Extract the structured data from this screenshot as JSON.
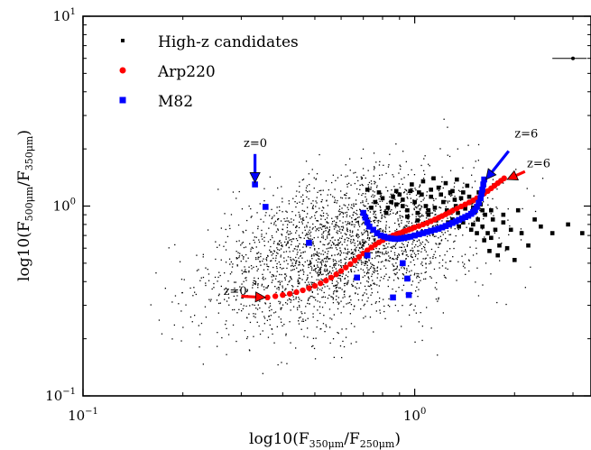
{
  "chart_data": {
    "type": "scatter",
    "xscale": "log",
    "yscale": "log",
    "xlim": [
      0.1,
      3.4
    ],
    "ylim": [
      0.1,
      10
    ],
    "x_ticks": [
      {
        "value": 0.1,
        "base": "10",
        "exp": "−1"
      },
      {
        "value": 1,
        "base": "10",
        "exp": "0"
      }
    ],
    "y_ticks": [
      {
        "value": 0.1,
        "base": "10",
        "exp": "−1"
      },
      {
        "value": 1,
        "base": "10",
        "exp": "0"
      },
      {
        "value": 10,
        "base": "10",
        "exp": "1"
      }
    ],
    "xlabel": {
      "pre": "log10(F",
      "sub1": "350μm",
      "mid": "/F",
      "sub2": "250μm",
      "post": ")"
    },
    "ylabel": {
      "pre": "log10(F",
      "sub1": "500μm",
      "mid": "/F",
      "sub2": "350μm",
      "post": ")"
    },
    "legend": {
      "position": "top-left",
      "entries": [
        {
          "label": "High-z candidates",
          "marker": "square-small",
          "color": "#000000"
        },
        {
          "label": "Arp220",
          "marker": "circle",
          "color": "#ff0000"
        },
        {
          "label": "M82",
          "marker": "square",
          "color": "#0000ff"
        }
      ]
    },
    "series": [
      {
        "name": "High-z candidates",
        "color": "#000000",
        "points": [
          [
            0.72,
            1.22
          ],
          [
            0.76,
            1.05
          ],
          [
            0.8,
            1.1
          ],
          [
            0.83,
            0.98
          ],
          [
            0.86,
            1.12
          ],
          [
            0.88,
            1.02
          ],
          [
            0.9,
            1.15
          ],
          [
            0.92,
            1.08
          ],
          [
            0.95,
            0.95
          ],
          [
            0.97,
            1.2
          ],
          [
            1.0,
            1.05
          ],
          [
            1.02,
            0.92
          ],
          [
            1.05,
            1.15
          ],
          [
            1.08,
            1.0
          ],
          [
            1.1,
            0.9
          ],
          [
            1.12,
            1.12
          ],
          [
            1.15,
            0.98
          ],
          [
            1.18,
            1.25
          ],
          [
            1.2,
            0.88
          ],
          [
            1.22,
            1.05
          ],
          [
            1.25,
            0.95
          ],
          [
            1.28,
            1.18
          ],
          [
            1.3,
            0.85
          ],
          [
            1.33,
            1.0
          ],
          [
            1.35,
            0.92
          ],
          [
            1.38,
            1.1
          ],
          [
            1.4,
            0.82
          ],
          [
            1.42,
            0.97
          ],
          [
            1.45,
            0.88
          ],
          [
            1.48,
            1.05
          ],
          [
            1.5,
            0.8
          ],
          [
            1.52,
            0.93
          ],
          [
            1.55,
            0.85
          ],
          [
            1.58,
            1.02
          ],
          [
            1.6,
            0.78
          ],
          [
            1.63,
            0.9
          ],
          [
            1.66,
            0.72
          ],
          [
            1.7,
            0.95
          ],
          [
            1.75,
            0.75
          ],
          [
            1.8,
            0.62
          ],
          [
            1.85,
            0.82
          ],
          [
            1.9,
            0.6
          ],
          [
            2.0,
            0.52
          ],
          [
            2.1,
            0.72
          ],
          [
            2.3,
            0.85
          ],
          [
            2.6,
            0.72
          ],
          [
            2.9,
            0.8
          ],
          [
            3.2,
            0.72
          ],
          [
            0.98,
            1.3
          ],
          [
            1.06,
            1.35
          ],
          [
            1.14,
            1.4
          ],
          [
            1.24,
            1.32
          ],
          [
            1.34,
            1.38
          ],
          [
            1.44,
            1.28
          ],
          [
            1.2,
            1.15
          ],
          [
            1.1,
            0.95
          ],
          [
            0.95,
            0.88
          ],
          [
            1.3,
            1.2
          ],
          [
            1.46,
            1.12
          ],
          [
            1.56,
            1.18
          ],
          [
            1.7,
            0.68
          ],
          [
            1.62,
            0.66
          ],
          [
            1.54,
            0.72
          ],
          [
            1.48,
            0.75
          ],
          [
            1.36,
            0.78
          ],
          [
            1.26,
            0.82
          ],
          [
            1.16,
            0.84
          ],
          [
            1.02,
            0.84
          ],
          [
            0.92,
            1.0
          ],
          [
            0.85,
            1.05
          ],
          [
            0.78,
            1.18
          ],
          [
            0.74,
            0.98
          ],
          [
            1.32,
            1.08
          ],
          [
            1.4,
            1.18
          ],
          [
            1.5,
            0.98
          ],
          [
            1.6,
            0.95
          ],
          [
            1.72,
            0.85
          ],
          [
            1.85,
            0.9
          ],
          [
            1.95,
            0.75
          ],
          [
            2.2,
            0.62
          ],
          [
            2.4,
            0.78
          ],
          [
            1.78,
            0.55
          ],
          [
            1.68,
            0.58
          ],
          [
            2.05,
            0.95
          ],
          [
            1.12,
            1.22
          ],
          [
            1.03,
            1.18
          ],
          [
            0.88,
            1.2
          ],
          [
            0.82,
            0.92
          ]
        ]
      },
      {
        "name": "Arp220",
        "color": "#ff0000",
        "points": [
          [
            0.36,
            0.33
          ],
          [
            0.38,
            0.335
          ],
          [
            0.4,
            0.34
          ],
          [
            0.42,
            0.345
          ],
          [
            0.44,
            0.352
          ],
          [
            0.46,
            0.36
          ],
          [
            0.48,
            0.37
          ],
          [
            0.5,
            0.38
          ],
          [
            0.52,
            0.392
          ],
          [
            0.54,
            0.405
          ],
          [
            0.56,
            0.42
          ],
          [
            0.58,
            0.437
          ],
          [
            0.6,
            0.455
          ],
          [
            0.62,
            0.475
          ],
          [
            0.64,
            0.495
          ],
          [
            0.66,
            0.517
          ],
          [
            0.68,
            0.54
          ],
          [
            0.7,
            0.563
          ],
          [
            0.72,
            0.585
          ],
          [
            0.74,
            0.605
          ],
          [
            0.76,
            0.625
          ],
          [
            0.78,
            0.643
          ],
          [
            0.8,
            0.66
          ],
          [
            0.82,
            0.675
          ],
          [
            0.84,
            0.688
          ],
          [
            0.86,
            0.7
          ],
          [
            0.88,
            0.71
          ],
          [
            0.9,
            0.72
          ],
          [
            0.92,
            0.73
          ],
          [
            0.94,
            0.74
          ],
          [
            0.96,
            0.75
          ],
          [
            0.98,
            0.76
          ],
          [
            1.0,
            0.772
          ],
          [
            1.03,
            0.785
          ],
          [
            1.06,
            0.8
          ],
          [
            1.09,
            0.815
          ],
          [
            1.12,
            0.832
          ],
          [
            1.15,
            0.85
          ],
          [
            1.18,
            0.868
          ],
          [
            1.21,
            0.886
          ],
          [
            1.24,
            0.905
          ],
          [
            1.27,
            0.925
          ],
          [
            1.3,
            0.945
          ],
          [
            1.34,
            0.97
          ],
          [
            1.38,
            0.995
          ],
          [
            1.42,
            1.02
          ],
          [
            1.46,
            1.045
          ],
          [
            1.5,
            1.07
          ],
          [
            1.54,
            1.1
          ],
          [
            1.58,
            1.13
          ],
          [
            1.62,
            1.165
          ],
          [
            1.66,
            1.2
          ],
          [
            1.7,
            1.24
          ],
          [
            1.74,
            1.28
          ],
          [
            1.78,
            1.32
          ],
          [
            1.82,
            1.36
          ],
          [
            1.86,
            1.4
          ]
        ]
      },
      {
        "name": "M82",
        "color": "#0000ff",
        "points": [
          [
            0.33,
            1.3
          ],
          [
            0.355,
            0.99
          ],
          [
            0.48,
            0.64
          ],
          [
            0.67,
            0.42
          ],
          [
            0.72,
            0.55
          ],
          [
            0.86,
            0.33
          ],
          [
            0.92,
            0.5
          ],
          [
            0.95,
            0.415
          ],
          [
            0.96,
            0.34
          ],
          [
            0.7,
            0.92
          ],
          [
            0.71,
            0.87
          ],
          [
            0.72,
            0.82
          ],
          [
            0.73,
            0.78
          ],
          [
            0.75,
            0.75
          ],
          [
            0.77,
            0.72
          ],
          [
            0.79,
            0.7
          ],
          [
            0.81,
            0.69
          ],
          [
            0.83,
            0.68
          ],
          [
            0.85,
            0.675
          ],
          [
            0.87,
            0.672
          ],
          [
            0.89,
            0.672
          ],
          [
            0.91,
            0.675
          ],
          [
            0.93,
            0.68
          ],
          [
            0.95,
            0.685
          ],
          [
            0.97,
            0.69
          ],
          [
            1.0,
            0.7
          ],
          [
            1.03,
            0.71
          ],
          [
            1.06,
            0.72
          ],
          [
            1.09,
            0.73
          ],
          [
            1.12,
            0.74
          ],
          [
            1.15,
            0.75
          ],
          [
            1.18,
            0.76
          ],
          [
            1.21,
            0.772
          ],
          [
            1.24,
            0.785
          ],
          [
            1.27,
            0.8
          ],
          [
            1.3,
            0.815
          ],
          [
            1.33,
            0.83
          ],
          [
            1.36,
            0.845
          ],
          [
            1.39,
            0.86
          ],
          [
            1.42,
            0.875
          ],
          [
            1.45,
            0.89
          ],
          [
            1.48,
            0.91
          ],
          [
            1.5,
            0.93
          ],
          [
            1.52,
            0.955
          ],
          [
            1.54,
            0.99
          ],
          [
            1.56,
            1.04
          ],
          [
            1.58,
            1.1
          ],
          [
            1.59,
            1.16
          ],
          [
            1.6,
            1.22
          ],
          [
            1.61,
            1.3
          ],
          [
            1.62,
            1.38
          ]
        ]
      }
    ],
    "annotations": [
      {
        "text": "z=0",
        "text_at": [
          0.305,
          2.05
        ],
        "arrow_from": [
          0.33,
          1.88
        ],
        "arrow_to": [
          0.33,
          1.33
        ],
        "color": "#0000ff"
      },
      {
        "text": "z=0",
        "text_at": [
          0.265,
          0.34
        ],
        "arrow_from": [
          0.3,
          0.335
        ],
        "arrow_to": [
          0.355,
          0.33
        ],
        "color": "#ff0000"
      },
      {
        "text": "z=6",
        "text_at": [
          2.0,
          2.3
        ],
        "arrow_from": [
          1.92,
          1.95
        ],
        "arrow_to": [
          1.64,
          1.38
        ],
        "color": "#0000ff"
      },
      {
        "text": "z=6",
        "text_at": [
          2.18,
          1.6
        ],
        "arrow_from": [
          2.15,
          1.52
        ],
        "arrow_to": [
          1.9,
          1.38
        ],
        "color": "#ff0000"
      }
    ],
    "error_bar": {
      "x": 3.0,
      "y": 6.0,
      "x_err": [
        2.6,
        3.3
      ],
      "y_err": [
        5.9,
        6.1
      ]
    },
    "background_seed": 7,
    "background_count": 2600
  }
}
